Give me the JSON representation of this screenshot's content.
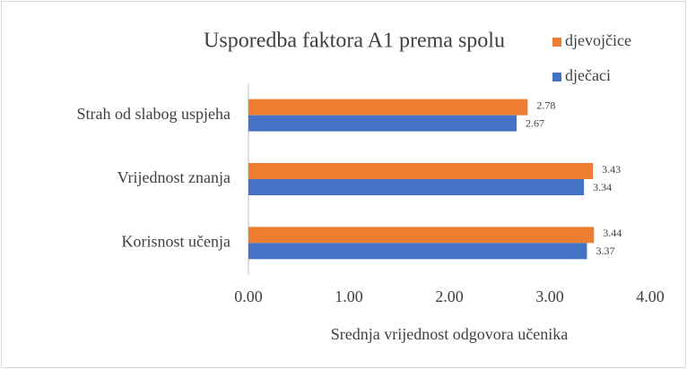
{
  "chart_data": {
    "type": "hbar",
    "title": "Usporedba faktora A1 prema spolu",
    "xlabel": "Srednja vrijednost odgovora učenika",
    "categories": [
      "Strah od slabog uspjeha",
      "Vrijednost znanja",
      "Korisnost učenja"
    ],
    "series": [
      {
        "name": "djevojčice",
        "color": "#ed7d31",
        "values": [
          2.78,
          3.43,
          3.44
        ]
      },
      {
        "name": "dječaci",
        "color": "#4472c4",
        "values": [
          2.67,
          3.34,
          3.37
        ]
      }
    ],
    "xlim": [
      0,
      4
    ],
    "xticks": [
      {
        "value": 0,
        "label": "0.00"
      },
      {
        "value": 1,
        "label": "1.00"
      },
      {
        "value": 2,
        "label": "2.00"
      },
      {
        "value": 3,
        "label": "3.00"
      },
      {
        "value": 4,
        "label": "4.00"
      }
    ],
    "grid": false,
    "legend": "top-right"
  }
}
